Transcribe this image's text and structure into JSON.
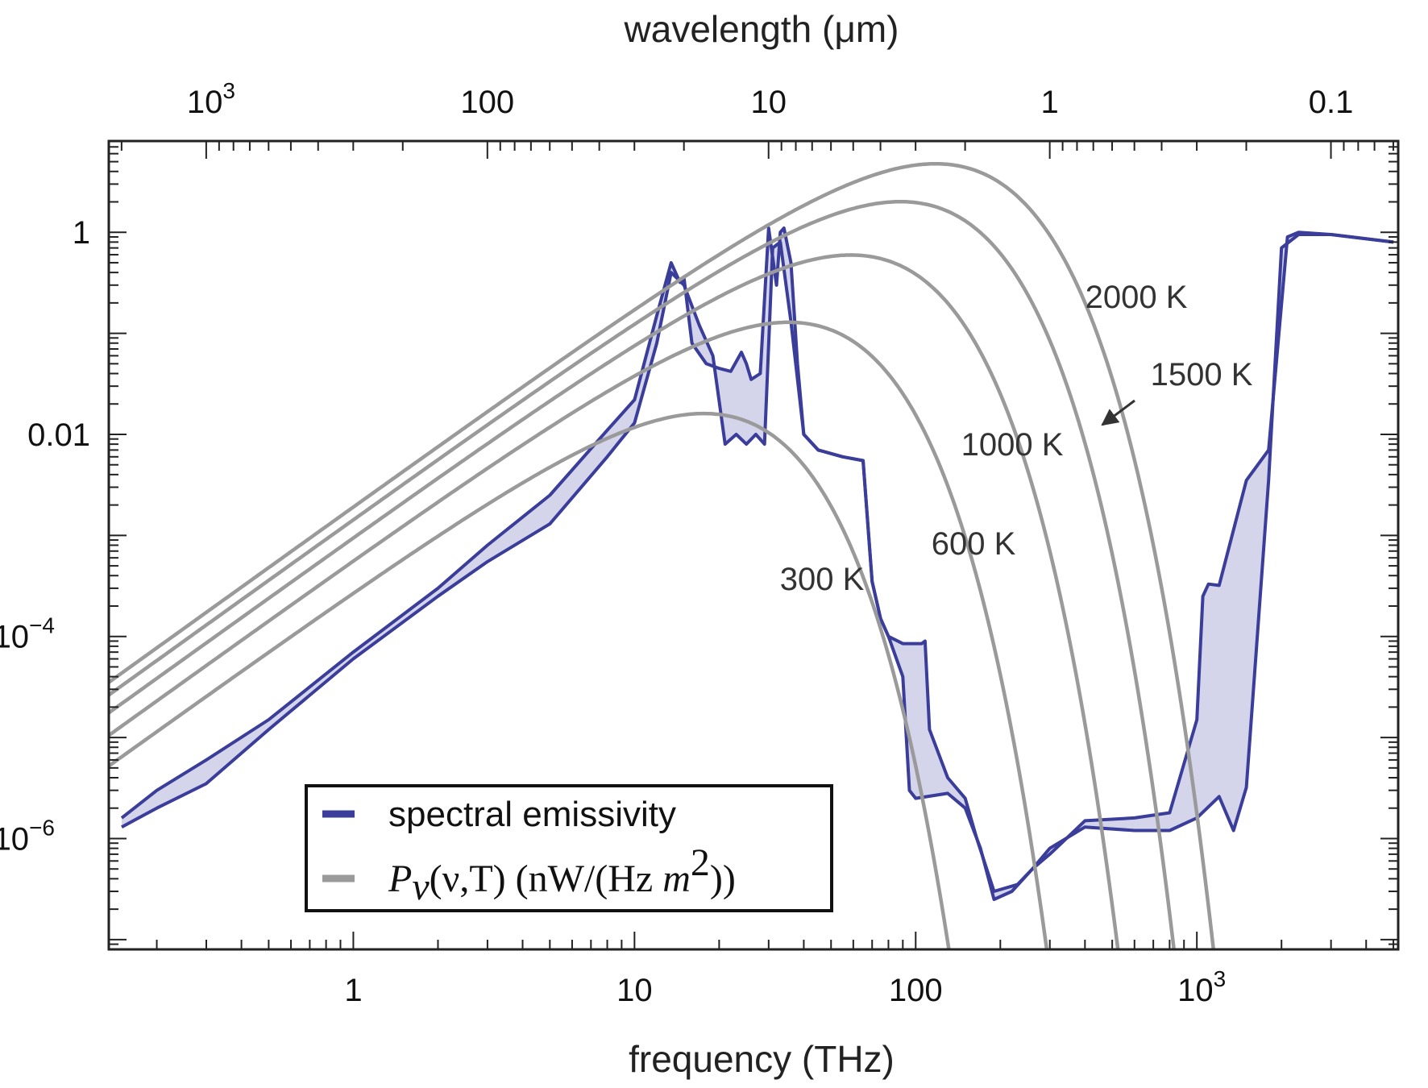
{
  "chart_data": {
    "type": "line",
    "xlabel": "frequency (THz)",
    "x2label": "wavelength (μm)",
    "xscale": "log",
    "yscale": "log",
    "xlim": [
      0.135,
      5200
    ],
    "ylim": [
      8e-08,
      8
    ],
    "x_ticks": [
      {
        "label": "1",
        "sup": ""
      },
      {
        "label": "10",
        "sup": ""
      },
      {
        "label": "100",
        "sup": ""
      },
      {
        "label": "10",
        "sup": "3"
      }
    ],
    "x2_ticks": [
      {
        "label": "10",
        "sup": "3"
      },
      {
        "label": "100",
        "sup": ""
      },
      {
        "label": "10",
        "sup": ""
      },
      {
        "label": "1",
        "sup": ""
      },
      {
        "label": "0.1",
        "sup": ""
      }
    ],
    "y_ticks": [
      {
        "label": "1",
        "sup": ""
      },
      {
        "label": "0.01",
        "sup": ""
      },
      {
        "label": "10",
        "sup": "−4"
      },
      {
        "label": "10",
        "sup": "−6"
      }
    ],
    "legend": {
      "position": "bottom-center",
      "emissivity": "spectral emissivity",
      "planck_symbol": "P",
      "planck_sub": "ν",
      "planck_args": "(ν,T) (nW/(Hz ",
      "planck_unit_var": "m",
      "planck_unit_sup": "2",
      "planck_close": "))"
    },
    "colors": {
      "emissivity": "#3a3d9a",
      "fill": "#d4d4ea",
      "planck": "#9a9a9a",
      "arrow": "#333333"
    },
    "series": [
      {
        "name": "300 K",
        "label": "300 K",
        "T": 300
      },
      {
        "name": "600 K",
        "label": "600 K",
        "T": 600
      },
      {
        "name": "1000 K",
        "label": "1000 K",
        "T": 1000
      },
      {
        "name": "1500 K",
        "label": "1500 K",
        "T": 1500
      },
      {
        "name": "2000 K",
        "label": "2000 K",
        "T": 2000
      }
    ],
    "emissivity_upper": [
      [
        0.15,
        1.6e-06
      ],
      [
        0.2,
        3e-06
      ],
      [
        0.3,
        6e-06
      ],
      [
        0.5,
        1.5e-05
      ],
      [
        1,
        7e-05
      ],
      [
        2,
        0.0003
      ],
      [
        3,
        0.0008
      ],
      [
        5,
        0.0025
      ],
      [
        8,
        0.011
      ],
      [
        10,
        0.022
      ],
      [
        12,
        0.15
      ],
      [
        13.5,
        0.5
      ],
      [
        14.5,
        0.32
      ],
      [
        15,
        0.35
      ],
      [
        16,
        0.08
      ],
      [
        18,
        0.05
      ],
      [
        20,
        0.045
      ],
      [
        22,
        0.042
      ],
      [
        24,
        0.065
      ],
      [
        25,
        0.05
      ],
      [
        26,
        0.035
      ],
      [
        28,
        0.04
      ],
      [
        30,
        1.1
      ],
      [
        32,
        0.3
      ],
      [
        33,
        1.0
      ],
      [
        34,
        1.1
      ],
      [
        36,
        0.5
      ],
      [
        38,
        0.05
      ],
      [
        40,
        0.01
      ],
      [
        45,
        0.007
      ],
      [
        55,
        0.006
      ],
      [
        65,
        0.0055
      ],
      [
        70,
        0.00035
      ],
      [
        75,
        0.00015
      ],
      [
        80,
        0.0001
      ],
      [
        90,
        8.5e-05
      ],
      [
        105,
        8.5e-05
      ],
      [
        108,
        9e-05
      ],
      [
        112,
        1.2e-05
      ],
      [
        130,
        4e-06
      ],
      [
        150,
        2.5e-06
      ],
      [
        165,
        1e-06
      ],
      [
        190,
        3e-07
      ],
      [
        230,
        3.5e-07
      ],
      [
        260,
        5e-07
      ],
      [
        300,
        7e-07
      ],
      [
        330,
        9e-07
      ],
      [
        400,
        1.5e-06
      ],
      [
        600,
        1.6e-06
      ],
      [
        800,
        1.8e-06
      ],
      [
        1000,
        1.5e-05
      ],
      [
        1050,
        0.00025
      ],
      [
        1100,
        0.00033
      ],
      [
        1200,
        0.00032
      ],
      [
        1500,
        0.0035
      ],
      [
        1800,
        0.007
      ],
      [
        2100,
        0.9
      ],
      [
        2300,
        1.0
      ],
      [
        3000,
        0.95
      ],
      [
        5000,
        0.8
      ]
    ],
    "emissivity_lower": [
      [
        0.15,
        1.3e-06
      ],
      [
        0.2,
        2e-06
      ],
      [
        0.3,
        3.5e-06
      ],
      [
        0.5,
        1.2e-05
      ],
      [
        1,
        6e-05
      ],
      [
        2,
        0.00025
      ],
      [
        3,
        0.00055
      ],
      [
        5,
        0.0013
      ],
      [
        8,
        0.006
      ],
      [
        10,
        0.013
      ],
      [
        12,
        0.08
      ],
      [
        13.5,
        0.4
      ],
      [
        15,
        0.3
      ],
      [
        17,
        0.12
      ],
      [
        19,
        0.06
      ],
      [
        21,
        0.008
      ],
      [
        23,
        0.01
      ],
      [
        25,
        0.008
      ],
      [
        27,
        0.01
      ],
      [
        29,
        0.008
      ],
      [
        31,
        0.7
      ],
      [
        33,
        0.8
      ],
      [
        36,
        0.13
      ],
      [
        40,
        0.01
      ],
      [
        45,
        0.007
      ],
      [
        55,
        0.006
      ],
      [
        65,
        0.0055
      ],
      [
        70,
        0.00035
      ],
      [
        75,
        0.00015
      ],
      [
        80,
        0.0001
      ],
      [
        90,
        4e-05
      ],
      [
        95,
        3e-06
      ],
      [
        100,
        2.5e-06
      ],
      [
        130,
        2.8e-06
      ],
      [
        150,
        2e-06
      ],
      [
        170,
        8e-07
      ],
      [
        190,
        2.5e-07
      ],
      [
        220,
        3e-07
      ],
      [
        260,
        5e-07
      ],
      [
        300,
        8e-07
      ],
      [
        400,
        1.3e-06
      ],
      [
        600,
        1.2e-06
      ],
      [
        800,
        1.2e-06
      ],
      [
        1000,
        1.6e-06
      ],
      [
        1200,
        2.6e-06
      ],
      [
        1350,
        1.2e-06
      ],
      [
        1500,
        3.2e-06
      ],
      [
        1800,
        0.0035
      ],
      [
        2000,
        0.7
      ],
      [
        2300,
        0.95
      ],
      [
        3000,
        0.95
      ],
      [
        5000,
        0.8
      ]
    ]
  }
}
